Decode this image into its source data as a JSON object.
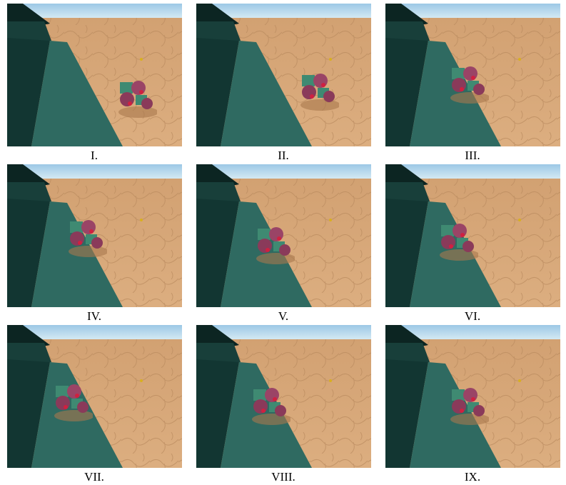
{
  "panels": [
    {
      "label": "I."
    },
    {
      "label": "II."
    },
    {
      "label": "III."
    },
    {
      "label": "IV."
    },
    {
      "label": "V."
    },
    {
      "label": "VI."
    },
    {
      "label": "VII."
    },
    {
      "label": "VIII."
    },
    {
      "label": "IX."
    }
  ]
}
